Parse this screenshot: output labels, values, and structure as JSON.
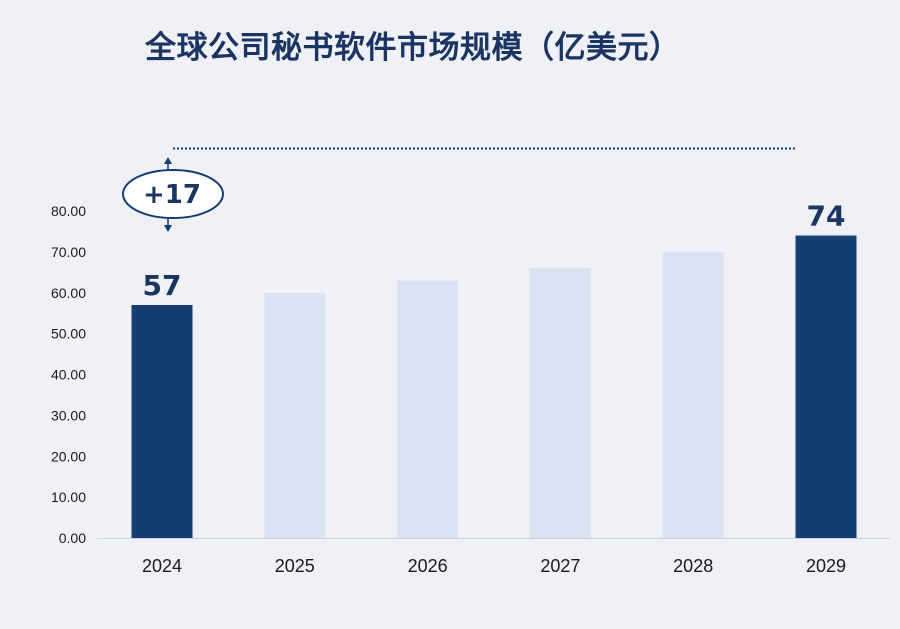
{
  "chart_data": {
    "type": "bar",
    "title": "全球公司秘书软件市场规模（亿美元）",
    "categories": [
      "2024",
      "2025",
      "2026",
      "2027",
      "2028",
      "2029"
    ],
    "values": [
      57,
      60,
      63,
      66,
      70,
      74
    ],
    "highlighted": [
      true,
      false,
      false,
      false,
      false,
      true
    ],
    "data_labels": [
      "57",
      "",
      "",
      "",
      "",
      "74"
    ],
    "ylim": [
      0,
      80
    ],
    "yticks": [
      "0.00",
      "10.00",
      "20.00",
      "30.00",
      "40.00",
      "50.00",
      "60.00",
      "70.00",
      "80.00"
    ],
    "ytick_values": [
      0,
      10,
      20,
      30,
      40,
      50,
      60,
      70,
      80
    ],
    "annotation": {
      "text": "+17",
      "from_category": "2024",
      "to_category": "2029"
    },
    "grid": false,
    "legend": "none",
    "colors": {
      "highlight": "#143d72",
      "regular": "#dbe3f3",
      "text": "#1b3563",
      "axis": "#cfd3dc"
    }
  }
}
